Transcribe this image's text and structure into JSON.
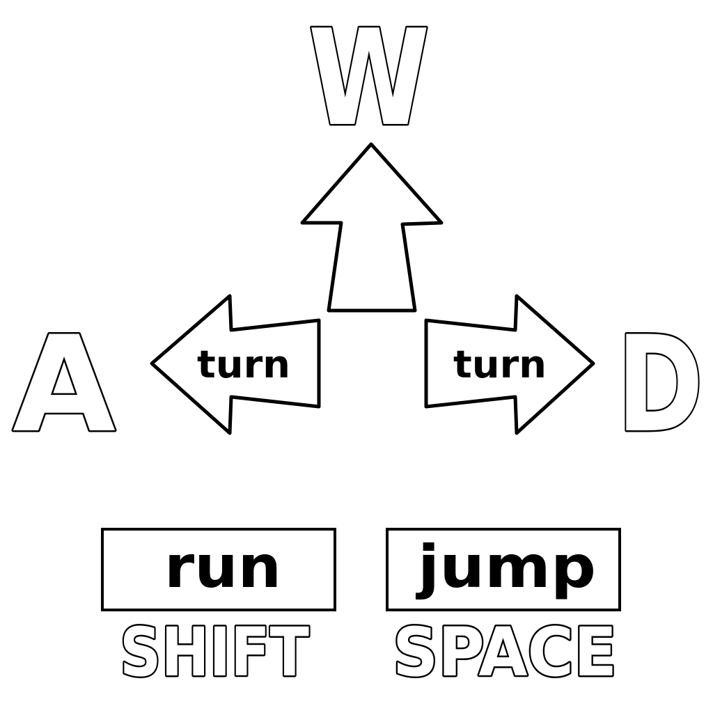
{
  "keys": {
    "forward": {
      "key": "W"
    },
    "left": {
      "key": "A",
      "action": "turn"
    },
    "right": {
      "key": "D",
      "action": "turn"
    },
    "run": {
      "key": "SHIFT",
      "action": "run"
    },
    "jump": {
      "key": "SPACE",
      "action": "jump"
    }
  },
  "colors": {
    "outline": "#000000",
    "fill": "#ffffff",
    "background": "#ffffff"
  },
  "icons": {
    "up": "arrow-up-icon",
    "left": "arrow-left-icon",
    "right": "arrow-right-icon"
  }
}
